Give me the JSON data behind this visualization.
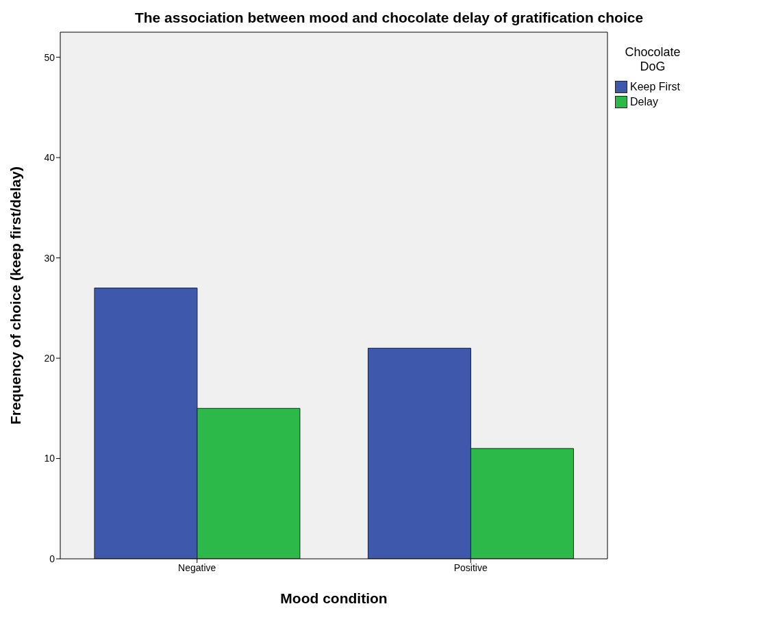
{
  "chart_data": {
    "type": "bar",
    "title": "The association between mood and chocolate delay of gratification choice",
    "xlabel": "Mood condition",
    "ylabel": "Frequency of choice (keep first/delay)",
    "legend_title": "Chocolate DoG",
    "categories": [
      "Negative",
      "Positive"
    ],
    "series": [
      {
        "name": "Keep First",
        "color": "#3e58ac",
        "values": [
          27,
          21
        ]
      },
      {
        "name": "Delay",
        "color": "#2db84a",
        "values": [
          15,
          11
        ]
      }
    ],
    "ylim": [
      0,
      52.5
    ],
    "yticks": [
      0,
      10,
      20,
      30,
      40,
      50
    ],
    "grid": false,
    "legend": "top right"
  }
}
